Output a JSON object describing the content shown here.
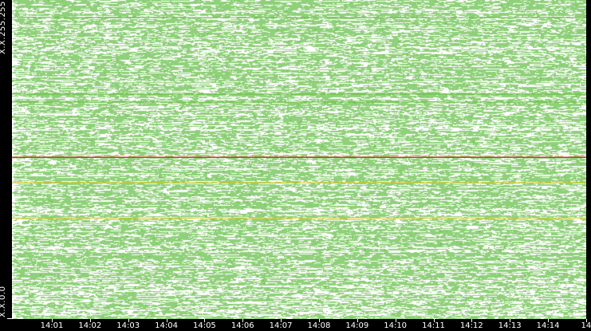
{
  "chart_data": {
    "type": "heatmap",
    "y_axis": {
      "top_label": "X.X.255.255",
      "bottom_label": "X.X.0.0"
    },
    "x_axis": {
      "tick_labels": [
        "14:01",
        "14:02",
        "14:03",
        "14:04",
        "14:05",
        "14:06",
        "14:07",
        "14:08",
        "14:09",
        "14:10",
        "14:11",
        "14:12",
        "14:13",
        "14:14",
        "14"
      ]
    },
    "colors": {
      "background": "#000000",
      "plot": "#ffffff",
      "low": "#8fd07a",
      "medium": "#5cb82e",
      "high": "#e8c000",
      "max": "#e82020"
    },
    "highlighted_rows": [
      {
        "level": "max",
        "y_fraction_from_top": 0.493
      },
      {
        "level": "high",
        "y_fraction_from_top": 0.573
      },
      {
        "level": "high",
        "y_fraction_from_top": 0.683
      },
      {
        "level": "medium",
        "y_fraction_from_top": 0.295
      },
      {
        "level": "medium",
        "y_fraction_from_top": 0.32
      },
      {
        "level": "medium",
        "y_fraction_from_top": 0.055
      }
    ]
  }
}
